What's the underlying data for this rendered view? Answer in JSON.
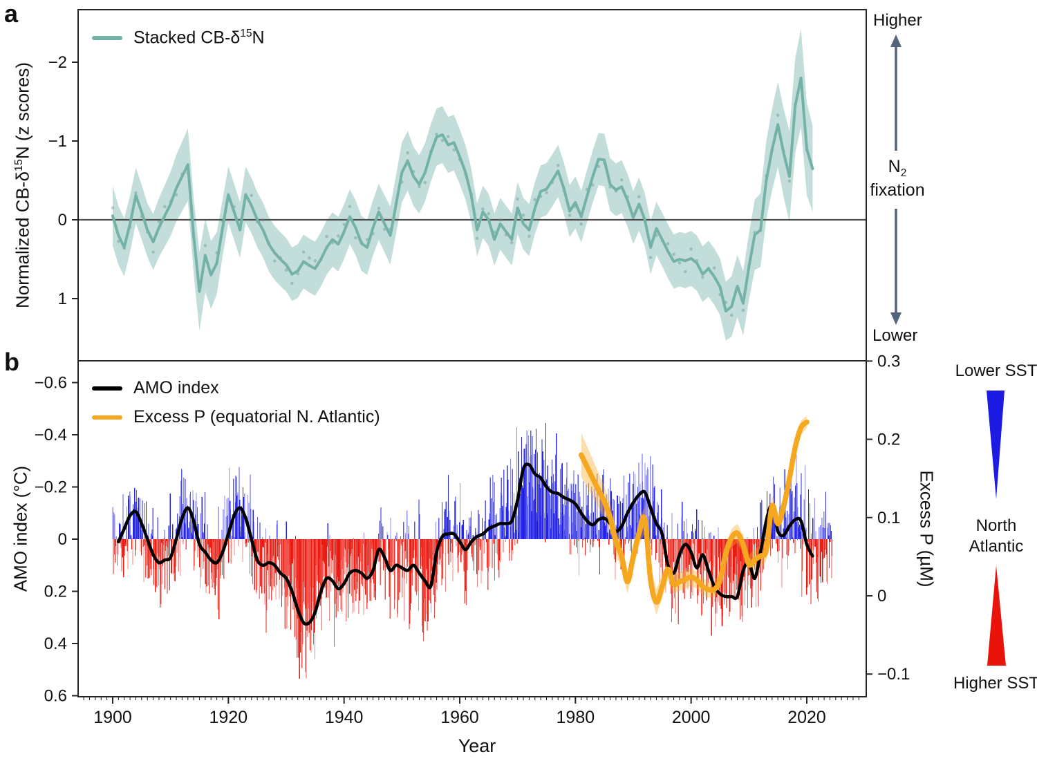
{
  "panel_a": {
    "tag": "a",
    "legend": {
      "pre": "Stacked CB-δ",
      "sup": "15",
      "post": "N",
      "color": "#74b2a8"
    },
    "ylabel": {
      "pre": "Normalized CB-δ",
      "sup": "15",
      "post": "N (z scores)"
    },
    "ytick_labels": [
      "−2",
      "−1",
      "0",
      "1"
    ],
    "annotation": {
      "top": "Higher",
      "mid_base": "N",
      "mid_sub": "2",
      "mid_line2": "fixation",
      "bottom": "Lower",
      "arrow_color": "#53637b"
    }
  },
  "panel_b": {
    "tag": "b",
    "ylabel": "AMO index (°C)",
    "ytick_labels": [
      "−0.6",
      "−0.4",
      "−0.2",
      "0",
      "0.2",
      "0.4",
      "0.6"
    ],
    "right_axis_label": "Excess P (µM)",
    "right_tick_labels": [
      "0.3",
      "0.2",
      "0.1",
      "0",
      "−0.1"
    ],
    "xtick_labels": [
      "1900",
      "1920",
      "1940",
      "1960",
      "1980",
      "2000",
      "2020"
    ],
    "xlabel": "Year",
    "legend": [
      {
        "label": "AMO index",
        "color": "#000000"
      },
      {
        "label": "Excess P (equatorial N. Atlantic)",
        "color": "#f5a81f"
      }
    ],
    "sst_legend": {
      "top": "Lower SST",
      "mid1": "North",
      "mid2": "Atlantic",
      "bottom": "Higher SST",
      "blue": "#1b1be4",
      "red": "#ea1309"
    }
  },
  "chart_data": [
    {
      "id": "stacked_cb_d15n",
      "panel": "a",
      "type": "line",
      "title": "Stacked CB-δ15N",
      "ylabel": "Normalized CB-δ15N (z scores)",
      "y_axis_inverted": true,
      "ylim": [
        -2.67,
        1.79
      ],
      "yticks": [
        -2,
        -1,
        0,
        1
      ],
      "zero_line": true,
      "line_color": "#74b2a8",
      "band_color": "rgba(122,182,173,0.45)",
      "zero_line_color": "#4d4d4d",
      "x_start": 1900,
      "x_step": 1,
      "values": [
        -0.05,
        0.2,
        0.35,
        0.05,
        -0.31,
        -0.1,
        0.13,
        0.28,
        0.1,
        -0.05,
        -0.2,
        -0.4,
        -0.55,
        -0.7,
        0.2,
        0.91,
        0.45,
        0.7,
        0.55,
        0.1,
        -0.32,
        -0.1,
        0.13,
        -0.32,
        -0.18,
        0,
        0.13,
        0.31,
        0.42,
        0.5,
        0.57,
        0.69,
        0.65,
        0.53,
        0.58,
        0.62,
        0.5,
        0.35,
        0.25,
        0.31,
        0.15,
        -0.04,
        0.1,
        0.3,
        0.35,
        0.1,
        -0.1,
        0.05,
        0.2,
        -0.2,
        -0.6,
        -0.75,
        -0.55,
        -0.45,
        -0.6,
        -0.85,
        -1.05,
        -1.08,
        -0.95,
        -0.98,
        -0.8,
        -0.6,
        -0.31,
        0.13,
        -0.1,
        0,
        0.25,
        0.05,
        0.15,
        0.25,
        -0.15,
        0.05,
        0.13,
        -0.15,
        -0.36,
        -0.39,
        -0.5,
        -0.62,
        -0.4,
        -0.11,
        -0.22,
        -0.04,
        -0.3,
        -0.55,
        -0.77,
        -0.76,
        -0.45,
        -0.38,
        -0.42,
        -0.25,
        -0.03,
        -0.2,
        0,
        0.35,
        0.11,
        0.25,
        0.4,
        0.53,
        0.5,
        0.52,
        0.49,
        0.55,
        0.69,
        0.62,
        0.72,
        0.85,
        1.16,
        1.1,
        0.84,
        1.06,
        0.6,
        0.19,
        0.13,
        -0.5,
        -0.89,
        -1.21,
        -0.85,
        -0.55,
        -1.45,
        -1.8,
        -0.9,
        -0.65
      ],
      "band_halfwidth_anchors": [
        [
          1900,
          0.38
        ],
        [
          1906,
          0.34
        ],
        [
          1912,
          0.44
        ],
        [
          1915,
          0.5
        ],
        [
          1919,
          0.36
        ],
        [
          1930,
          0.34
        ],
        [
          1945,
          0.35
        ],
        [
          1950,
          0.38
        ],
        [
          1957,
          0.36
        ],
        [
          1965,
          0.33
        ],
        [
          1980,
          0.33
        ],
        [
          1995,
          0.34
        ],
        [
          2005,
          0.36
        ],
        [
          2010,
          0.42
        ],
        [
          2014,
          0.52
        ],
        [
          2018,
          0.6
        ],
        [
          2019,
          0.62
        ],
        [
          2021,
          0.55
        ]
      ]
    },
    {
      "id": "amo_excess_p",
      "panel": "b",
      "type": "line+bar",
      "xlabel": "Year",
      "ylabel": "AMO index (°C)",
      "y_axis_inverted": true,
      "ylim": [
        -0.69,
        0.6
      ],
      "yticks": [
        -0.6,
        -0.4,
        -0.2,
        0,
        0.2,
        0.4,
        0.6
      ],
      "xticks": [
        1900,
        1920,
        1940,
        1960,
        1980,
        2000,
        2020
      ],
      "xlim": [
        1894,
        2030.3
      ],
      "right_axis": {
        "label": "Excess P (µM)",
        "ticks": [
          0.3,
          0.2,
          0.1,
          0,
          -0.1
        ]
      },
      "amo_line": {
        "name": "AMO index",
        "color": "#000000",
        "x_start": 1901,
        "x_step": 1,
        "values": [
          0.01,
          -0.04,
          -0.09,
          -0.105,
          -0.06,
          0,
          0.06,
          0.09,
          0.08,
          0.07,
          0,
          -0.08,
          -0.12,
          -0.07,
          0.02,
          0.05,
          0.08,
          0.09,
          0.05,
          -0.02,
          -0.09,
          -0.12,
          -0.08,
          0,
          0.08,
          0.1,
          0.09,
          0.1,
          0.13,
          0.15,
          0.2,
          0.27,
          0.32,
          0.32,
          0.28,
          0.2,
          0.15,
          0.16,
          0.19,
          0.17,
          0.13,
          0.12,
          0.13,
          0.15,
          0.12,
          0.04,
          0.07,
          0.12,
          0.1,
          0.11,
          0.12,
          0.1,
          0.13,
          0.16,
          0.18,
          0.05,
          -0.01,
          -0.02,
          -0.02,
          0.01,
          0.04,
          0.01,
          -0.01,
          -0.02,
          -0.04,
          -0.05,
          -0.06,
          -0.06,
          -0.07,
          -0.15,
          -0.27,
          -0.285,
          -0.25,
          -0.235,
          -0.2,
          -0.18,
          -0.175,
          -0.16,
          -0.15,
          -0.135,
          -0.1,
          -0.07,
          -0.055,
          -0.075,
          -0.08,
          -0.06,
          -0.03,
          -0.05,
          -0.1,
          -0.14,
          -0.17,
          -0.18,
          -0.12,
          -0.06,
          -0.02,
          0.1,
          0.13,
          0.06,
          0.02,
          0.05,
          0.11,
          0.06,
          0.12,
          0.18,
          0.21,
          0.22,
          0.22,
          0.22,
          0.12,
          0.09,
          0.15,
          0.05,
          -0.07,
          -0.13,
          -0.03,
          -0.015,
          -0.05,
          -0.075,
          -0.07,
          0.02,
          0.065
        ]
      },
      "excess_p_line": {
        "name": "Excess P (equatorial N. Atlantic)",
        "color": "#f5a81f",
        "band_color": "rgba(245,168,31,0.38)",
        "x_start": 1981,
        "x_step": 1,
        "values": [
          0.18,
          0.165,
          0.15,
          0.135,
          0.12,
          0.1,
          0.07,
          0.05,
          0.018,
          0.05,
          0.08,
          0.098,
          0.02,
          -0.008,
          0.012,
          0.034,
          0.015,
          0.018,
          0.021,
          0.024,
          0.02,
          0.012,
          0.008,
          0.008,
          0.02,
          0.055,
          0.074,
          0.08,
          0.065,
          0.04,
          0.046,
          0.051,
          0.058,
          0.115,
          0.092,
          0.114,
          0.15,
          0.19,
          0.215,
          0.222
        ],
        "band_halfwidth_anchors": [
          [
            1981,
            0.028
          ],
          [
            1985,
            0.02
          ],
          [
            1989,
            0.015
          ],
          [
            1993,
            0.018
          ],
          [
            1997,
            0.012
          ],
          [
            2004,
            0.01
          ],
          [
            2008,
            0.012
          ],
          [
            2013,
            0.014
          ],
          [
            2017,
            0.012
          ],
          [
            2020,
            0.008
          ]
        ]
      },
      "monthly_bars": {
        "description": "Monthly AMO anomalies (approximate envelope reconstruction read from figure)",
        "x_start": 1900,
        "x_end": 2024.4,
        "per_year": 12,
        "seed": 9,
        "up_color": "#1b1be4",
        "down_color": "#ea1309",
        "noise_amp_anchors": [
          [
            1900,
            0.26
          ],
          [
            1905,
            0.24
          ],
          [
            1910,
            0.28
          ],
          [
            1915,
            0.26
          ],
          [
            1920,
            0.27
          ],
          [
            1925,
            0.28
          ],
          [
            1930,
            0.34
          ],
          [
            1935,
            0.28
          ],
          [
            1940,
            0.26
          ],
          [
            1945,
            0.26
          ],
          [
            1950,
            0.3
          ],
          [
            1955,
            0.32
          ],
          [
            1960,
            0.26
          ],
          [
            1965,
            0.24
          ],
          [
            1970,
            0.32
          ],
          [
            1975,
            0.26
          ],
          [
            1980,
            0.28
          ],
          [
            1985,
            0.28
          ],
          [
            1990,
            0.26
          ],
          [
            1995,
            0.27
          ],
          [
            2000,
            0.29
          ],
          [
            2005,
            0.3
          ],
          [
            2010,
            0.3
          ],
          [
            2015,
            0.28
          ],
          [
            2020,
            0.3
          ],
          [
            2024,
            0.32
          ]
        ]
      }
    }
  ]
}
